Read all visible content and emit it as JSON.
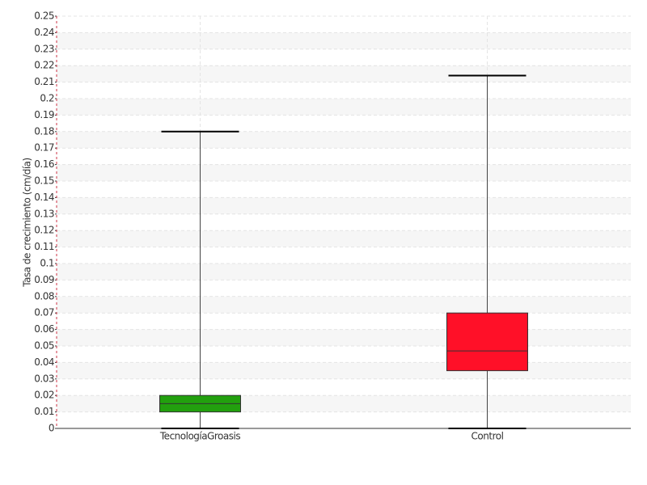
{
  "chart_data": {
    "type": "box",
    "y_label": "Tasa de crecimiento (cm/día)",
    "categories": [
      "TecnologíaGroasis",
      "Control"
    ],
    "boxes": [
      {
        "min": 0,
        "q1": 0.01,
        "median": 0.015,
        "q3": 0.02,
        "max": 0.18,
        "color": "#22a00e"
      },
      {
        "min": 0,
        "q1": 0.035,
        "median": 0.047,
        "q3": 0.07,
        "max": 0.214,
        "color": "#ff1028"
      }
    ],
    "ylim": [
      0,
      0.25
    ],
    "yticks": [
      0,
      0.01,
      0.02,
      0.03,
      0.04,
      0.05,
      0.06,
      0.07,
      0.08,
      0.09,
      0.1,
      0.11,
      0.12,
      0.13,
      0.14,
      0.15,
      0.16,
      0.17,
      0.18,
      0.19,
      0.2,
      0.21,
      0.22,
      0.23,
      0.24,
      0.25
    ],
    "grid": true
  }
}
